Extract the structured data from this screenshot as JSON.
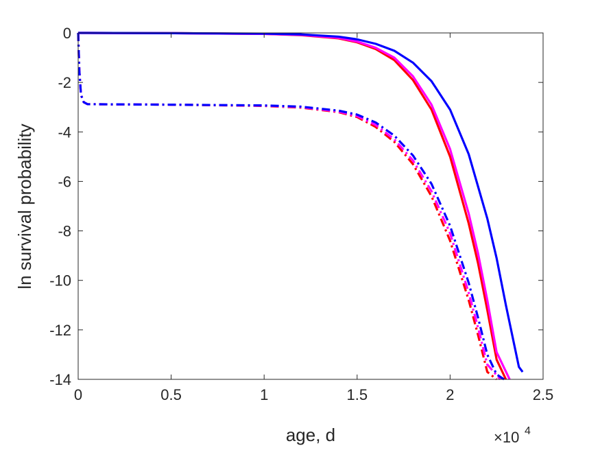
{
  "chart_data": {
    "type": "line",
    "title": "",
    "xlabel": "age, d",
    "ylabel": "ln survival probability",
    "x_exponent_label": "×10",
    "x_exponent_power": "4",
    "xlim": [
      0,
      25000
    ],
    "ylim": [
      -14,
      0
    ],
    "x_ticks": [
      {
        "value": 0,
        "label": "0"
      },
      {
        "value": 5000,
        "label": "0.5"
      },
      {
        "value": 10000,
        "label": "1"
      },
      {
        "value": 15000,
        "label": "1.5"
      },
      {
        "value": 20000,
        "label": "2"
      },
      {
        "value": 25000,
        "label": "2.5"
      }
    ],
    "y_ticks": [
      {
        "value": 0,
        "label": "0"
      },
      {
        "value": -2,
        "label": "-2"
      },
      {
        "value": -4,
        "label": "-4"
      },
      {
        "value": -6,
        "label": "-6"
      },
      {
        "value": -8,
        "label": "-8"
      },
      {
        "value": -10,
        "label": "-10"
      },
      {
        "value": -12,
        "label": "-12"
      },
      {
        "value": -14,
        "label": "-14"
      }
    ],
    "grid": false,
    "series": [
      {
        "color": "#ff0000",
        "style": "solid",
        "x": [
          0,
          5000,
          10000,
          12000,
          14000,
          15000,
          16000,
          17000,
          18000,
          19000,
          20000,
          21000,
          21500,
          22000,
          22500,
          23000
        ],
        "y": [
          0,
          -0.01,
          -0.04,
          -0.09,
          -0.22,
          -0.38,
          -0.65,
          -1.1,
          -1.9,
          -3.1,
          -5.0,
          -7.7,
          -9.3,
          -11.2,
          -13.2,
          -14.0
        ]
      },
      {
        "color": "#ff00ff",
        "style": "solid",
        "x": [
          0,
          5000,
          10000,
          12000,
          14000,
          15000,
          16000,
          17000,
          18000,
          19000,
          20000,
          21000,
          21500,
          22000,
          22500,
          23200
        ],
        "y": [
          0,
          -0.01,
          -0.04,
          -0.08,
          -0.2,
          -0.35,
          -0.6,
          -1.0,
          -1.75,
          -2.9,
          -4.7,
          -7.3,
          -8.9,
          -10.8,
          -12.9,
          -14.0
        ]
      },
      {
        "color": "#0000ff",
        "style": "solid",
        "x": [
          0,
          5000,
          10000,
          12000,
          14000,
          15000,
          16000,
          17000,
          18000,
          19000,
          20000,
          21000,
          22000,
          22500,
          23000,
          23700,
          23900
        ],
        "y": [
          0,
          -0.01,
          -0.03,
          -0.06,
          -0.15,
          -0.26,
          -0.44,
          -0.72,
          -1.2,
          -1.95,
          -3.1,
          -4.9,
          -7.5,
          -9.1,
          -11.0,
          -13.5,
          -13.7
        ]
      },
      {
        "color": "#ff0000",
        "style": "dashdot",
        "x": [
          0,
          60,
          150,
          300,
          500,
          5000,
          10000,
          12000,
          14000,
          15000,
          16000,
          17000,
          18000,
          19000,
          20000,
          21000,
          21500,
          22000,
          22500
        ],
        "y": [
          0,
          -1.5,
          -2.5,
          -2.8,
          -2.88,
          -2.9,
          -2.95,
          -3.02,
          -3.2,
          -3.4,
          -3.8,
          -4.4,
          -5.3,
          -6.6,
          -8.4,
          -10.8,
          -12.2,
          -13.7,
          -14.0
        ]
      },
      {
        "color": "#ff00ff",
        "style": "dashdot",
        "x": [
          0,
          60,
          150,
          300,
          500,
          5000,
          10000,
          12000,
          14000,
          15000,
          16000,
          17000,
          18000,
          19000,
          20000,
          21000,
          21500,
          22000,
          22700
        ],
        "y": [
          0,
          -1.5,
          -2.5,
          -2.8,
          -2.88,
          -2.9,
          -2.94,
          -3.0,
          -3.18,
          -3.36,
          -3.72,
          -4.3,
          -5.15,
          -6.4,
          -8.1,
          -10.5,
          -11.9,
          -13.4,
          -14.0
        ]
      },
      {
        "color": "#0000ff",
        "style": "dashdot",
        "x": [
          0,
          60,
          150,
          300,
          500,
          5000,
          10000,
          12000,
          14000,
          15000,
          16000,
          17000,
          18000,
          19000,
          20000,
          21000,
          21500,
          22000,
          22500,
          22900
        ],
        "y": [
          0,
          -1.5,
          -2.5,
          -2.8,
          -2.88,
          -2.9,
          -2.93,
          -2.98,
          -3.14,
          -3.3,
          -3.62,
          -4.15,
          -4.95,
          -6.1,
          -7.8,
          -10.1,
          -11.5,
          -13.0,
          -13.8,
          -14.0
        ]
      }
    ]
  }
}
